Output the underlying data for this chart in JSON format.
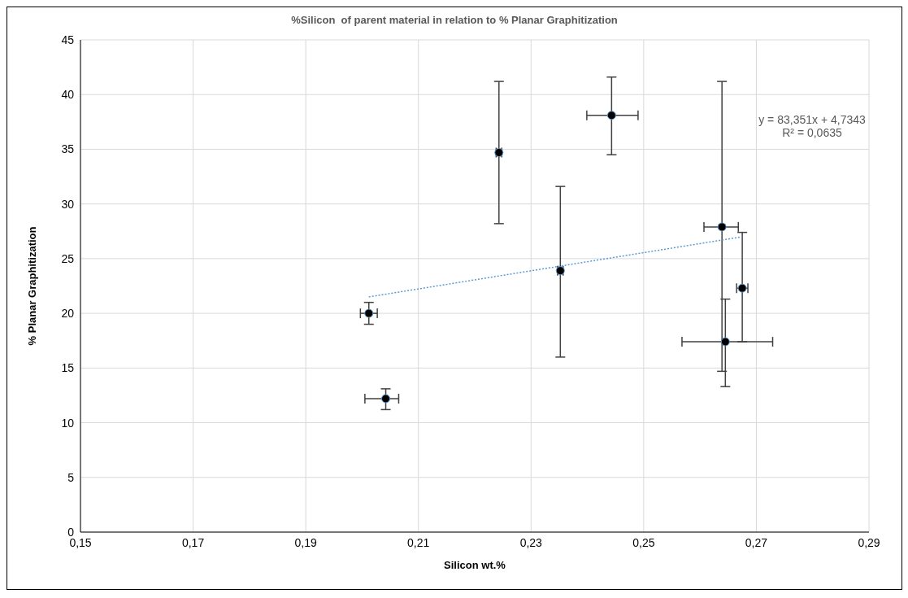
{
  "chart_data": {
    "type": "scatter",
    "title": "%Silicon  of parent material in relation to % Planar Graphitization",
    "xlabel": "Silicon wt.%",
    "ylabel": "% Planar Graphitization",
    "xlim": [
      0.15,
      0.29
    ],
    "xticks": [
      {
        "value": 0.15,
        "label": "0,15"
      },
      {
        "value": 0.17,
        "label": "0,17"
      },
      {
        "value": 0.19,
        "label": "0,19"
      },
      {
        "value": 0.21,
        "label": "0,21"
      },
      {
        "value": 0.23,
        "label": "0,23"
      },
      {
        "value": 0.25,
        "label": "0,25"
      },
      {
        "value": 0.27,
        "label": "0,27"
      },
      {
        "value": 0.29,
        "label": "0,29"
      }
    ],
    "ylim": [
      0,
      45
    ],
    "yticks": [
      0,
      5,
      10,
      15,
      20,
      25,
      30,
      35,
      40,
      45
    ],
    "grid": true,
    "marker": "circle",
    "annotations": [
      "y = 83,351x + 4,7343",
      "R² = 0,0635"
    ],
    "series": [
      {
        "color": "#000000",
        "x": [
          0.2012,
          0.2042,
          0.2243,
          0.2352,
          0.2443,
          0.2639,
          0.2675,
          0.2645
        ],
        "values": [
          20,
          12.2,
          34.7,
          23.9,
          38.1,
          27.9,
          22.3,
          17.4
        ],
        "errors": [
          [
            19,
            21
          ],
          [
            11.2,
            13.1
          ],
          [
            28.2,
            41.2
          ],
          [
            16,
            31.6
          ],
          [
            34.5,
            41.6
          ],
          [
            14.7,
            41.2
          ],
          [
            17.4,
            27.4
          ],
          [
            13.3,
            21.3
          ]
        ],
        "xerrors": [
          [
            0.1997,
            0.2027
          ],
          [
            0.2005,
            0.2065
          ],
          [
            0.2238,
            0.2248
          ],
          [
            0.2347,
            0.2357
          ],
          [
            0.2399,
            0.249
          ],
          [
            0.2607,
            0.2668
          ],
          [
            0.2665,
            0.2685
          ],
          [
            0.2568,
            0.2729
          ]
        ]
      },
      {
        "type": "line",
        "color": "#5b9bd5",
        "line_style": "dotted",
        "marker": "none",
        "x": [
          0.2012,
          0.2675
        ],
        "values": [
          21.5,
          27.0
        ]
      }
    ]
  }
}
